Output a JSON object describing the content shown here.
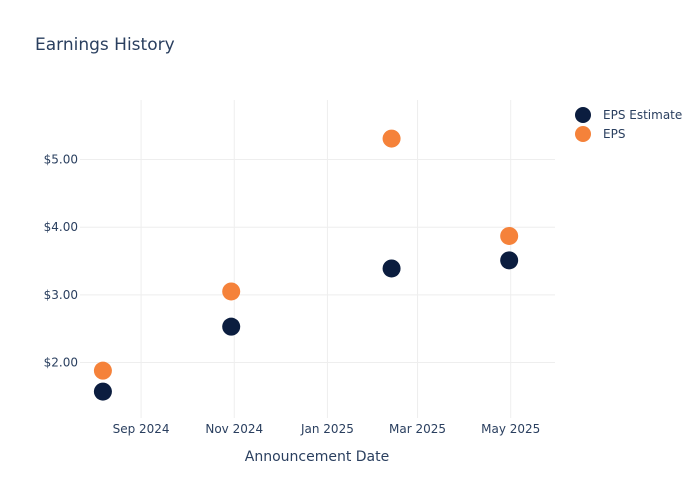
{
  "chart_data": {
    "type": "scatter",
    "title": "Earnings History",
    "xlabel": "Announcement Date",
    "ylabel": "",
    "x_ticks": [
      {
        "date": "2024-09-01",
        "label": "Sep 2024"
      },
      {
        "date": "2024-11-01",
        "label": "Nov 2024"
      },
      {
        "date": "2025-01-01",
        "label": "Jan 2025"
      },
      {
        "date": "2025-03-01",
        "label": "Mar 2025"
      },
      {
        "date": "2025-05-01",
        "label": "May 2025"
      }
    ],
    "y_ticks": [
      {
        "value": 2,
        "label": "$2.00"
      },
      {
        "value": 3,
        "label": "$3.00"
      },
      {
        "value": 4,
        "label": "$4.00"
      },
      {
        "value": 5,
        "label": "$5.00"
      }
    ],
    "xlim": [
      "2024-07-23",
      "2025-05-30"
    ],
    "ylim": [
      1.18,
      5.88
    ],
    "grid": true,
    "legend_position": "top-right",
    "series": [
      {
        "name": "EPS Estimate",
        "color": "#0b1d3f",
        "points": [
          {
            "x": "2024-08-07",
            "y": 1.57
          },
          {
            "x": "2024-10-30",
            "y": 2.53
          },
          {
            "x": "2025-02-12",
            "y": 3.39
          },
          {
            "x": "2025-04-30",
            "y": 3.51
          }
        ]
      },
      {
        "name": "EPS",
        "color": "#f5823a",
        "points": [
          {
            "x": "2024-08-07",
            "y": 1.88
          },
          {
            "x": "2024-10-30",
            "y": 3.05
          },
          {
            "x": "2025-02-12",
            "y": 5.31
          },
          {
            "x": "2025-04-30",
            "y": 3.87
          }
        ]
      }
    ]
  }
}
